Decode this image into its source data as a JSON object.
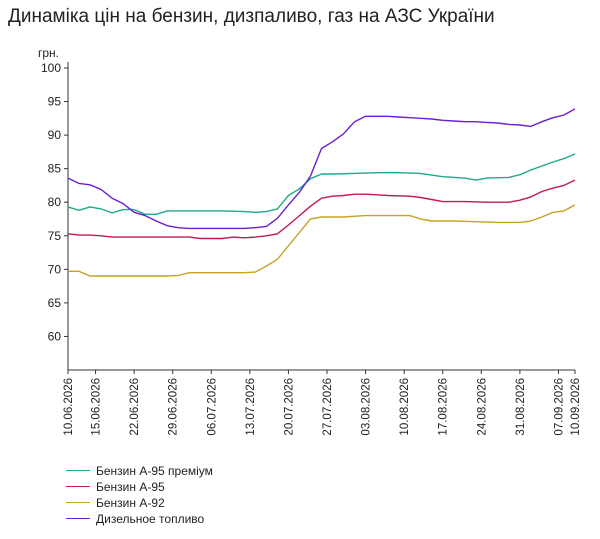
{
  "chart_data": {
    "type": "line",
    "title": "Динаміка цін на бензин, дизпаливо, газ на АЗС України",
    "ylabel": "грн.",
    "ylim": [
      55,
      100
    ],
    "yticks": [
      60,
      65,
      70,
      75,
      80,
      85,
      90,
      95,
      100
    ],
    "xlim": [
      0,
      92
    ],
    "xticks": [
      {
        "label": "10.06.2026",
        "x": 0
      },
      {
        "label": "15.06.2026",
        "x": 5
      },
      {
        "label": "22.06.2026",
        "x": 12
      },
      {
        "label": "29.06.2026",
        "x": 19
      },
      {
        "label": "06.07.2026",
        "x": 26
      },
      {
        "label": "13.07.2026",
        "x": 33
      },
      {
        "label": "20.07.2026",
        "x": 40
      },
      {
        "label": "27.07.2026",
        "x": 47
      },
      {
        "label": "03.08.2026",
        "x": 54
      },
      {
        "label": "10.08.2026",
        "x": 61
      },
      {
        "label": "17.08.2026",
        "x": 68
      },
      {
        "label": "24.08.2026",
        "x": 75
      },
      {
        "label": "31.08.2026",
        "x": 82
      },
      {
        "label": "07.09.2026",
        "x": 89
      },
      {
        "label": "10.09.2026",
        "x": 92
      }
    ],
    "legend_position": "bottom-left",
    "series": [
      {
        "name": "Бензин А-95 преміум",
        "color": "#1fa98c",
        "points": [
          [
            0,
            79.3
          ],
          [
            2,
            78.8
          ],
          [
            4,
            79.3
          ],
          [
            6,
            79.0
          ],
          [
            8,
            78.4
          ],
          [
            10,
            78.9
          ],
          [
            12,
            78.9
          ],
          [
            14,
            78.2
          ],
          [
            16,
            78.2
          ],
          [
            18,
            78.7
          ],
          [
            20,
            78.7
          ],
          [
            24,
            78.7
          ],
          [
            28,
            78.7
          ],
          [
            32,
            78.6
          ],
          [
            34,
            78.5
          ],
          [
            36,
            78.6
          ],
          [
            38,
            79.0
          ],
          [
            40,
            81.0
          ],
          [
            42,
            82.0
          ],
          [
            44,
            83.5
          ],
          [
            46,
            84.2
          ],
          [
            48,
            84.2
          ],
          [
            52,
            84.3
          ],
          [
            56,
            84.4
          ],
          [
            60,
            84.4
          ],
          [
            64,
            84.3
          ],
          [
            68,
            83.8
          ],
          [
            72,
            83.6
          ],
          [
            74,
            83.3
          ],
          [
            76,
            83.6
          ],
          [
            80,
            83.7
          ],
          [
            82,
            84.1
          ],
          [
            84,
            84.8
          ],
          [
            86,
            85.4
          ],
          [
            88,
            86.0
          ],
          [
            90,
            86.5
          ],
          [
            92,
            87.2
          ]
        ]
      },
      {
        "name": "Бензин А-95",
        "color": "#c2185b",
        "points": [
          [
            0,
            75.3
          ],
          [
            2,
            75.1
          ],
          [
            4,
            75.1
          ],
          [
            6,
            75.0
          ],
          [
            8,
            74.8
          ],
          [
            10,
            74.8
          ],
          [
            14,
            74.8
          ],
          [
            18,
            74.8
          ],
          [
            22,
            74.8
          ],
          [
            24,
            74.6
          ],
          [
            26,
            74.6
          ],
          [
            28,
            74.6
          ],
          [
            30,
            74.8
          ],
          [
            32,
            74.7
          ],
          [
            34,
            74.8
          ],
          [
            36,
            75.0
          ],
          [
            38,
            75.3
          ],
          [
            40,
            76.6
          ],
          [
            42,
            78.0
          ],
          [
            44,
            79.4
          ],
          [
            46,
            80.6
          ],
          [
            48,
            80.9
          ],
          [
            50,
            81.0
          ],
          [
            52,
            81.2
          ],
          [
            54,
            81.2
          ],
          [
            56,
            81.1
          ],
          [
            58,
            81.0
          ],
          [
            62,
            80.9
          ],
          [
            64,
            80.7
          ],
          [
            66,
            80.4
          ],
          [
            68,
            80.1
          ],
          [
            72,
            80.1
          ],
          [
            76,
            80.0
          ],
          [
            80,
            80.0
          ],
          [
            82,
            80.3
          ],
          [
            84,
            80.8
          ],
          [
            86,
            81.6
          ],
          [
            88,
            82.1
          ],
          [
            90,
            82.5
          ],
          [
            92,
            83.3
          ]
        ]
      },
      {
        "name": "Бензин А-92",
        "color": "#c9a227",
        "points": [
          [
            0,
            69.7
          ],
          [
            2,
            69.7
          ],
          [
            4,
            69.0
          ],
          [
            6,
            69.0
          ],
          [
            10,
            69.0
          ],
          [
            14,
            69.0
          ],
          [
            18,
            69.0
          ],
          [
            20,
            69.1
          ],
          [
            22,
            69.5
          ],
          [
            24,
            69.5
          ],
          [
            26,
            69.5
          ],
          [
            28,
            69.5
          ],
          [
            30,
            69.5
          ],
          [
            32,
            69.5
          ],
          [
            34,
            69.6
          ],
          [
            36,
            70.5
          ],
          [
            38,
            71.5
          ],
          [
            40,
            73.5
          ],
          [
            42,
            75.5
          ],
          [
            44,
            77.5
          ],
          [
            46,
            77.8
          ],
          [
            50,
            77.8
          ],
          [
            54,
            78.0
          ],
          [
            58,
            78.0
          ],
          [
            62,
            78.0
          ],
          [
            64,
            77.5
          ],
          [
            66,
            77.2
          ],
          [
            70,
            77.2
          ],
          [
            74,
            77.1
          ],
          [
            78,
            77.0
          ],
          [
            82,
            77.0
          ],
          [
            84,
            77.2
          ],
          [
            86,
            77.8
          ],
          [
            88,
            78.5
          ],
          [
            90,
            78.7
          ],
          [
            92,
            79.6
          ]
        ]
      },
      {
        "name": "Дизельное топливо",
        "color": "#6a1fd0",
        "points": [
          [
            0,
            83.6
          ],
          [
            2,
            82.8
          ],
          [
            4,
            82.6
          ],
          [
            6,
            81.9
          ],
          [
            8,
            80.6
          ],
          [
            10,
            79.8
          ],
          [
            12,
            78.5
          ],
          [
            14,
            78.0
          ],
          [
            16,
            77.2
          ],
          [
            18,
            76.5
          ],
          [
            20,
            76.2
          ],
          [
            22,
            76.1
          ],
          [
            24,
            76.1
          ],
          [
            28,
            76.1
          ],
          [
            32,
            76.1
          ],
          [
            34,
            76.2
          ],
          [
            36,
            76.4
          ],
          [
            38,
            77.6
          ],
          [
            40,
            79.6
          ],
          [
            42,
            81.5
          ],
          [
            44,
            83.9
          ],
          [
            46,
            88.0
          ],
          [
            48,
            89.0
          ],
          [
            50,
            90.2
          ],
          [
            52,
            92.0
          ],
          [
            54,
            92.8
          ],
          [
            56,
            92.8
          ],
          [
            58,
            92.8
          ],
          [
            60,
            92.7
          ],
          [
            62,
            92.6
          ],
          [
            64,
            92.5
          ],
          [
            66,
            92.4
          ],
          [
            68,
            92.2
          ],
          [
            70,
            92.1
          ],
          [
            72,
            92.0
          ],
          [
            74,
            92.0
          ],
          [
            76,
            91.9
          ],
          [
            78,
            91.8
          ],
          [
            80,
            91.6
          ],
          [
            82,
            91.5
          ],
          [
            84,
            91.3
          ],
          [
            86,
            92.0
          ],
          [
            88,
            92.6
          ],
          [
            90,
            93.0
          ],
          [
            92,
            93.9
          ]
        ]
      }
    ]
  }
}
